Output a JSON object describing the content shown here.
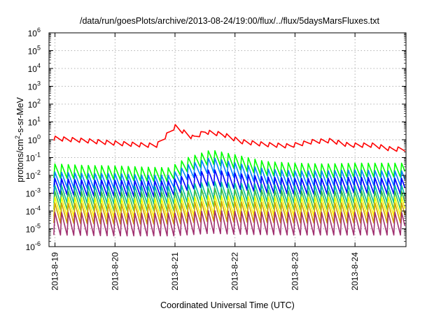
{
  "chart_data": {
    "type": "line",
    "title": "/data/run/goesPlots/archive/2013-08-24/19:00/flux/../flux/5daysMarsFluxes.txt",
    "xlabel": "Coordinated Universal Time (UTC)",
    "ylabel": {
      "prefix": "protons/cm",
      "sup": "2",
      "suffix": "-s-sr-MeV"
    },
    "yscale": "log",
    "ylim_exp": [
      -6,
      6
    ],
    "ytick_base": "10",
    "ytick_exps": [
      "-6",
      "-5",
      "-4",
      "-3",
      "-2",
      "-1",
      "0",
      "1",
      "2",
      "3",
      "4",
      "5",
      "6"
    ],
    "xlim_days": [
      -0.1,
      5.85
    ],
    "xticks": [
      "2013-8-19",
      "2013-8-20",
      "2013-8-21",
      "2013-8-22",
      "2013-8-23",
      "2013-8-24"
    ],
    "grid": true,
    "legend": "none",
    "series": [
      {
        "color": "#ff0000",
        "base_anchors": [
          [
            0,
            1.2
          ],
          [
            0.5,
            0.9
          ],
          [
            1,
            0.65
          ],
          [
            1.5,
            0.5
          ],
          [
            1.7,
            0.5
          ],
          [
            2.0,
            5.5
          ],
          [
            2.3,
            1.3
          ],
          [
            2.5,
            2.8
          ],
          [
            2.8,
            2.0
          ],
          [
            3.1,
            0.8
          ],
          [
            3.5,
            0.55
          ],
          [
            3.9,
            0.45
          ],
          [
            4.3,
            0.8
          ],
          [
            4.6,
            0.9
          ],
          [
            4.9,
            0.5
          ],
          [
            5.3,
            0.5
          ],
          [
            5.6,
            0.3
          ],
          [
            5.85,
            0.3
          ]
        ],
        "sawtooth_amp": 0.25,
        "teeth_per_day": 7,
        "spike_anchors": [
          [
            1.6,
            0.5
          ],
          [
            1.7,
            0.9
          ],
          [
            1.8,
            1.3
          ],
          [
            1.9,
            2.0
          ],
          [
            2.0,
            5.5
          ],
          [
            2.4,
            3.2
          ],
          [
            2.6,
            4.0
          ],
          [
            3.5,
            1.3
          ],
          [
            4.1,
            0.8
          ],
          [
            4.9,
            0.5
          ]
        ]
      },
      {
        "color": "#00ff00",
        "base_anchors": [
          [
            0,
            0.018
          ],
          [
            0.5,
            0.015
          ],
          [
            1,
            0.014
          ],
          [
            1.5,
            0.012
          ],
          [
            1.9,
            0.011
          ],
          [
            2.2,
            0.04
          ],
          [
            2.6,
            0.11
          ],
          [
            3.0,
            0.06
          ],
          [
            3.5,
            0.025
          ],
          [
            4.0,
            0.02
          ],
          [
            4.5,
            0.018
          ],
          [
            5.0,
            0.02
          ],
          [
            5.5,
            0.02
          ],
          [
            5.85,
            0.02
          ]
        ],
        "sawtooth_amp": 0.8,
        "teeth_per_day": 9
      },
      {
        "color": "#0080ff",
        "base_anchors": [
          [
            0,
            0.006
          ],
          [
            0.5,
            0.005
          ],
          [
            1,
            0.005
          ],
          [
            1.5,
            0.004
          ],
          [
            1.9,
            0.004
          ],
          [
            2.2,
            0.015
          ],
          [
            2.6,
            0.04
          ],
          [
            3.0,
            0.02
          ],
          [
            3.5,
            0.009
          ],
          [
            4.0,
            0.007
          ],
          [
            4.5,
            0.007
          ],
          [
            5.0,
            0.008
          ],
          [
            5.5,
            0.007
          ],
          [
            5.85,
            0.007
          ]
        ],
        "sawtooth_amp": 0.85,
        "teeth_per_day": 9
      },
      {
        "color": "#0000ff",
        "base_anchors": [
          [
            0,
            0.0025
          ],
          [
            0.5,
            0.002
          ],
          [
            1,
            0.002
          ],
          [
            1.5,
            0.0018
          ],
          [
            1.9,
            0.0018
          ],
          [
            2.2,
            0.004
          ],
          [
            2.6,
            0.008
          ],
          [
            3.0,
            0.005
          ],
          [
            3.5,
            0.003
          ],
          [
            4.0,
            0.0025
          ],
          [
            4.5,
            0.0025
          ],
          [
            5.0,
            0.003
          ],
          [
            5.5,
            0.0025
          ],
          [
            5.85,
            0.0025
          ]
        ],
        "sawtooth_amp": 0.9,
        "teeth_per_day": 9
      },
      {
        "color": "#00c0a0",
        "base_anchors": [
          [
            0,
            0.0009
          ],
          [
            1,
            0.0008
          ],
          [
            2,
            0.0008
          ],
          [
            2.6,
            0.0015
          ],
          [
            3.0,
            0.0012
          ],
          [
            4.0,
            0.0009
          ],
          [
            5.0,
            0.0009
          ],
          [
            5.85,
            0.0009
          ]
        ],
        "sawtooth_amp": 1.0,
        "teeth_per_day": 9
      },
      {
        "color": "#40c040",
        "base_anchors": [
          [
            0,
            0.0004
          ],
          [
            1,
            0.00035
          ],
          [
            2,
            0.00035
          ],
          [
            2.6,
            0.0006
          ],
          [
            3.0,
            0.0005
          ],
          [
            4.0,
            0.0004
          ],
          [
            5.0,
            0.0004
          ],
          [
            5.85,
            0.0004
          ]
        ],
        "sawtooth_amp": 1.05,
        "teeth_per_day": 9
      },
      {
        "color": "#ffff00",
        "base_anchors": [
          [
            0,
            0.00018
          ],
          [
            1,
            0.00015
          ],
          [
            2,
            0.00015
          ],
          [
            2.6,
            0.00022
          ],
          [
            3.0,
            0.0002
          ],
          [
            4.0,
            0.00018
          ],
          [
            5.0,
            0.00018
          ],
          [
            5.85,
            0.00018
          ]
        ],
        "sawtooth_amp": 1.1,
        "teeth_per_day": 9
      },
      {
        "color": "#d0a000",
        "base_anchors": [
          [
            0,
            8e-05
          ],
          [
            1,
            7e-05
          ],
          [
            2,
            7e-05
          ],
          [
            2.6,
            0.0001
          ],
          [
            3.0,
            9e-05
          ],
          [
            4.0,
            8e-05
          ],
          [
            5.0,
            8e-05
          ],
          [
            5.85,
            8e-05
          ]
        ],
        "sawtooth_amp": 1.15,
        "teeth_per_day": 9
      },
      {
        "color": "#a03070",
        "base_anchors": [
          [
            0,
            2e-05
          ],
          [
            1,
            1.8e-05
          ],
          [
            2,
            1.8e-05
          ],
          [
            2.6,
            2.5e-05
          ],
          [
            3.0,
            2.2e-05
          ],
          [
            4.0,
            2e-05
          ],
          [
            5.0,
            2e-05
          ],
          [
            5.85,
            2e-05
          ]
        ],
        "sawtooth_amp": 1.3,
        "teeth_per_day": 9
      }
    ]
  }
}
